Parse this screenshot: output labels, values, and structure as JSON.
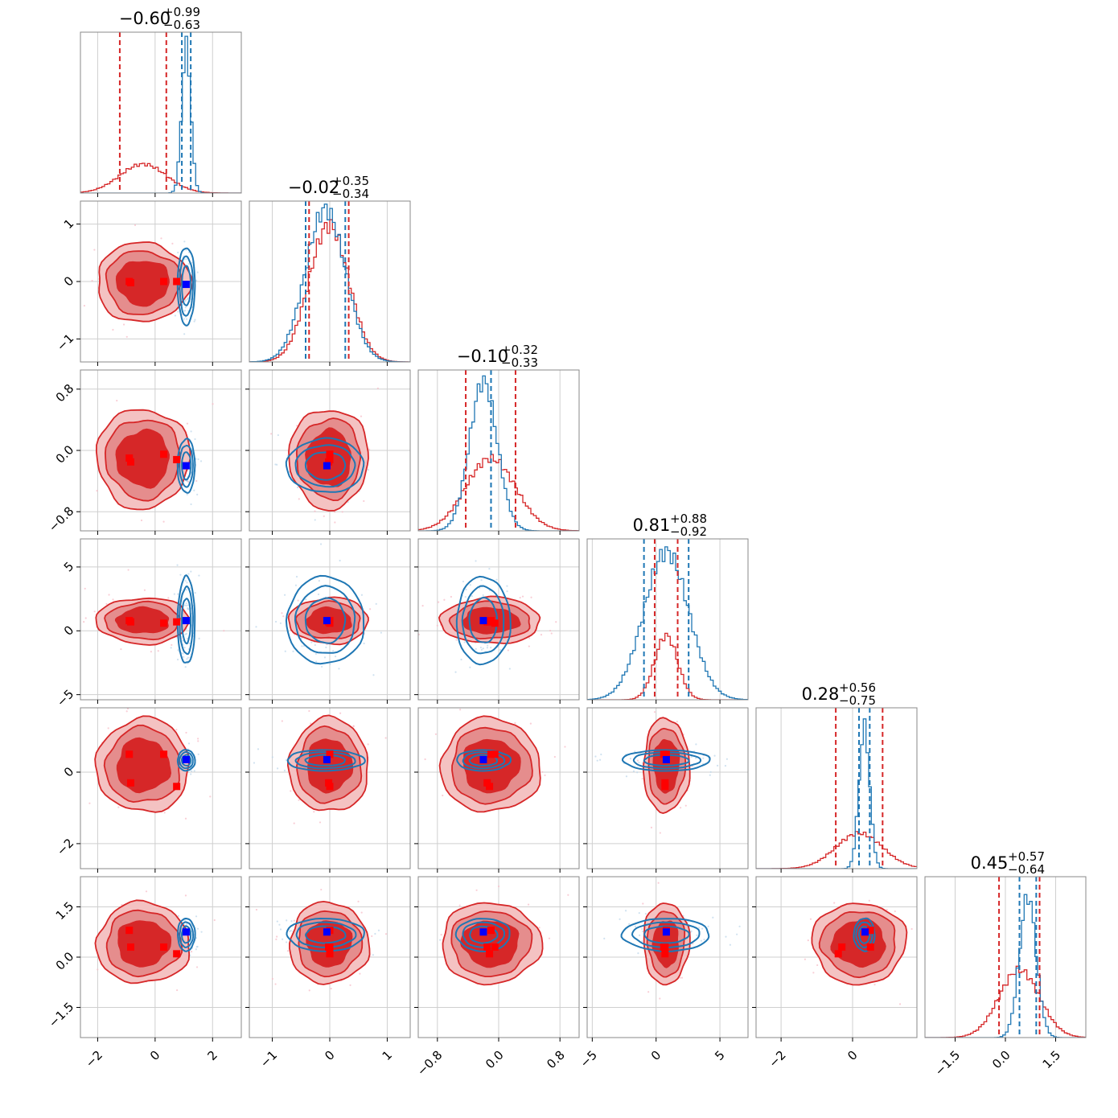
{
  "chart_data": {
    "type": "scatter",
    "chart_kind": "corner plot (2 posterior distributions, 6 parameters)",
    "grid": true,
    "colors": {
      "red_series": "#d62728",
      "red_fill_light": "#f4c2c2",
      "red_fill_mid": "#e58d8d",
      "blue_series": "#1f77b4",
      "marker_red": "#ff0000",
      "marker_blue": "#0000ff"
    },
    "parameters": [
      {
        "index": 0,
        "title": {
          "median": "−0.60",
          "plus": "+0.99",
          "minus": "−0.63"
        },
        "range": [
          -2.6,
          3.0
        ],
        "ticks": [
          -2,
          0,
          2
        ],
        "tick_labels": [
          "−2",
          "0",
          "2"
        ],
        "quantiles": {
          "red": [
            -1.23,
            0.39
          ],
          "blue": [
            0.93,
            1.24
          ]
        },
        "hist_peak": {
          "red": -0.8,
          "blue": 1.08
        }
      },
      {
        "index": 1,
        "title": {
          "median": "−0.02",
          "plus": "+0.35",
          "minus": "−0.34"
        },
        "range": [
          -1.4,
          1.4
        ],
        "ticks": [
          -1,
          0,
          1
        ],
        "tick_labels": [
          "−1",
          "0",
          "1"
        ],
        "quantiles": {
          "red": [
            -0.36,
            0.33
          ],
          "blue": [
            -0.42,
            0.27
          ]
        },
        "hist_peak": {
          "red": 0.0,
          "blue": 0.0
        }
      },
      {
        "index": 2,
        "title": {
          "median": "−0.10",
          "plus": "+0.32",
          "minus": "−0.33"
        },
        "range": [
          -1.05,
          1.05
        ],
        "ticks": [
          -0.8,
          0.0,
          0.8
        ],
        "tick_labels": [
          "−0.8",
          "0.0",
          "0.8"
        ],
        "quantiles": {
          "red": [
            -0.43,
            0.22
          ],
          "blue": [
            -0.1,
            -0.1
          ]
        },
        "hist_peak": {
          "red": -0.2,
          "blue": -0.2
        }
      },
      {
        "index": 3,
        "title": {
          "median": "0.81",
          "plus": "+0.88",
          "minus": "−0.92"
        },
        "range": [
          -5.4,
          7.2
        ],
        "ticks": [
          -5,
          0,
          5
        ],
        "tick_labels": [
          "−5",
          "0",
          "5"
        ],
        "quantiles": {
          "red": [
            -0.11,
            1.69
          ],
          "blue": [
            -0.95,
            2.55
          ]
        },
        "hist_peak": {
          "red": 0.8,
          "blue": 0.8
        }
      },
      {
        "index": 4,
        "title": {
          "median": "0.28",
          "plus": "+0.56",
          "minus": "−0.75"
        },
        "range": [
          -2.7,
          1.8
        ],
        "ticks": [
          -2,
          0
        ],
        "tick_labels": [
          "−2",
          "0"
        ],
        "quantiles": {
          "red": [
            -0.47,
            0.84
          ],
          "blue": [
            0.18,
            0.48
          ]
        },
        "hist_peak": {
          "red": 0.4,
          "blue": 0.35
        }
      },
      {
        "index": 5,
        "title": {
          "median": "0.45",
          "plus": "+0.57",
          "minus": "−0.64"
        },
        "range": [
          -2.4,
          2.4
        ],
        "ticks": [
          -1.5,
          0.0,
          1.5
        ],
        "tick_labels": [
          "−1.5",
          "0.0",
          "1.5"
        ],
        "quantiles": {
          "red": [
            -0.19,
            1.02
          ],
          "blue": [
            0.42,
            0.92
          ]
        },
        "hist_peak": {
          "red": 0.5,
          "blue": 0.75
        }
      }
    ],
    "points": {
      "blue_square": [
        1.08,
        -0.05,
        -0.2,
        0.8,
        0.35,
        0.75
      ],
      "red_squares": [
        [
          -0.9,
          0.0,
          -0.1,
          0.8,
          0.5,
          0.8
        ],
        [
          0.3,
          0.0,
          -0.05,
          0.6,
          0.5,
          0.3
        ],
        [
          0.75,
          0.0,
          -0.12,
          0.7,
          -0.4,
          0.1
        ],
        [
          -0.85,
          -0.02,
          -0.15,
          0.7,
          -0.3,
          0.3
        ]
      ]
    }
  }
}
